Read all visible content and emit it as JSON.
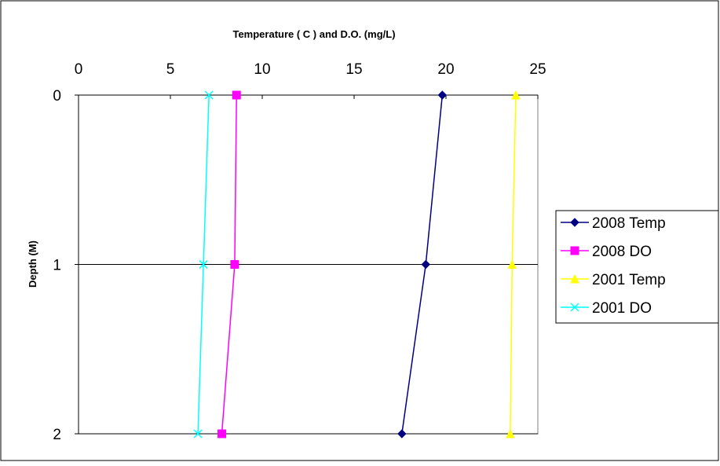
{
  "chart_data": {
    "type": "line",
    "x_title": "Temperature ( C ) and D.O. (mg/L)",
    "y_title": "Depth (M)",
    "x_ticks": [
      0,
      5,
      10,
      15,
      20,
      25
    ],
    "y_ticks": [
      0,
      1,
      2
    ],
    "xlim": [
      0,
      25
    ],
    "ylim": [
      0,
      2
    ],
    "x_axis_position": "top",
    "y_axis_inverted": true,
    "grid": "horizontal major gridlines",
    "legend_position": "right",
    "depths": [
      0,
      1,
      2
    ],
    "series": [
      {
        "name": "2008 Temp",
        "values": [
          19.8,
          18.9,
          17.6
        ],
        "color": "#000080",
        "marker": "diamond"
      },
      {
        "name": "2008 DO",
        "values": [
          8.6,
          8.5,
          7.8
        ],
        "color": "#FF00FF",
        "marker": "square"
      },
      {
        "name": "2001 Temp",
        "values": [
          23.8,
          23.6,
          23.5
        ],
        "color": "#FFFF00",
        "marker": "triangle"
      },
      {
        "name": "2001 DO",
        "values": [
          7.1,
          6.8,
          6.5
        ],
        "color": "#00FFFF",
        "marker": "x"
      }
    ]
  }
}
